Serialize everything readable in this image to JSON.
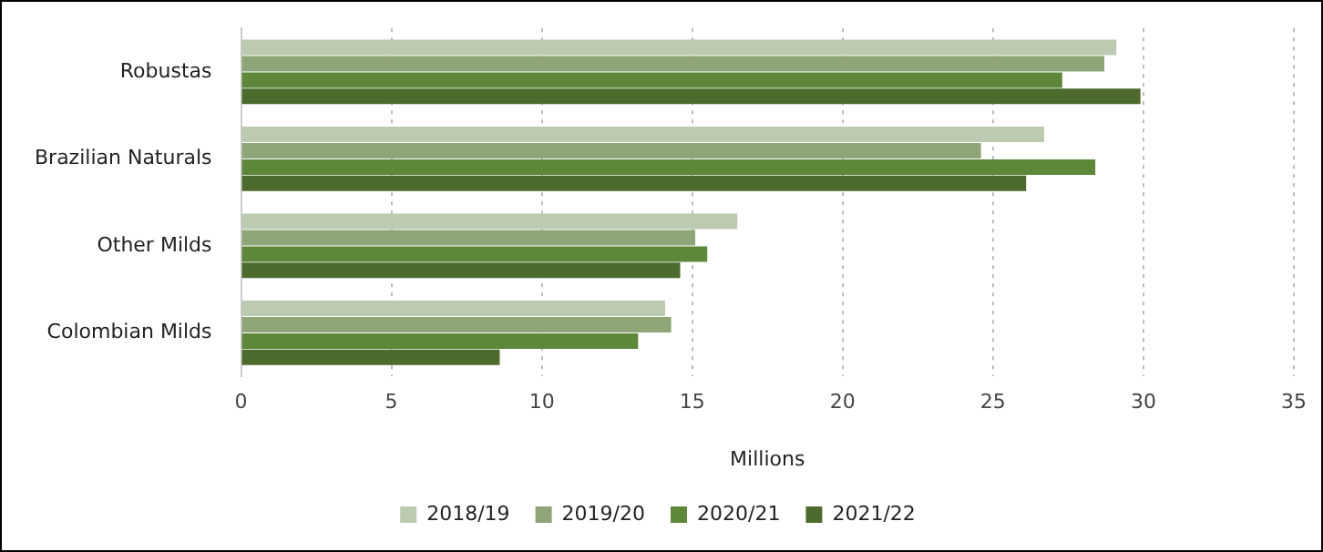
{
  "chart_data": {
    "type": "bar",
    "orientation": "horizontal",
    "xlabel": "Millions",
    "categories": [
      "Robustas",
      "Brazilian Naturals",
      "Other Milds",
      "Colombian Milds"
    ],
    "series": [
      {
        "name": "2018/19",
        "color": "#bccab2",
        "values": [
          29.1,
          26.7,
          16.5,
          14.1
        ]
      },
      {
        "name": "2019/20",
        "color": "#8ea677",
        "values": [
          28.7,
          24.6,
          15.1,
          14.3
        ]
      },
      {
        "name": "2020/21",
        "color": "#5e873a",
        "values": [
          27.3,
          28.4,
          15.5,
          13.2
        ]
      },
      {
        "name": "2021/22",
        "color": "#4e6b2e",
        "values": [
          29.9,
          26.1,
          14.6,
          8.6
        ]
      }
    ],
    "xlim": [
      0,
      35
    ],
    "xticks": [
      0,
      5,
      10,
      15,
      20,
      25,
      30,
      35
    ],
    "grid": "x",
    "legend": "bottom"
  }
}
